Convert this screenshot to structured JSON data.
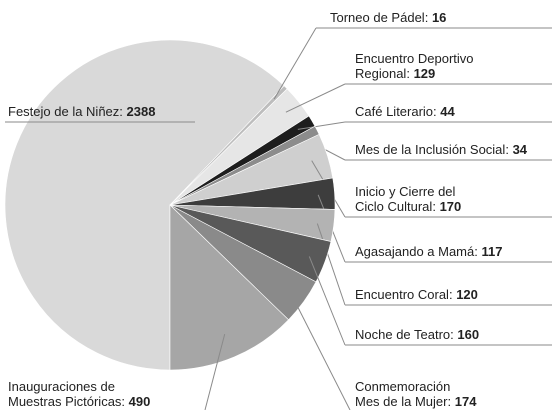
{
  "chart_data": {
    "type": "pie",
    "categories": [
      "Festejo de la Niñez",
      "Torneo de Pádel",
      "Encuentro Deportivo\nRegional",
      "Café Literario",
      "Mes de la Inclusión Social",
      "Inicio y Cierre del\nCiclo Cultural",
      "Agasajando a Mamá",
      "Encuentro Coral",
      "Noche de Teatro",
      "Conmemoración\nMes de la Mujer",
      "Inauguraciones de\nMuestras Pictóricas"
    ],
    "values": [
      2388,
      16,
      129,
      44,
      34,
      170,
      117,
      120,
      160,
      174,
      490
    ],
    "colors": [
      "#d9d9d9",
      "#bdbdbd",
      "#e6e6e6",
      "#1e1e1e",
      "#8c8c8c",
      "#cfcfcf",
      "#3d3d3d",
      "#b3b3b3",
      "#595959",
      "#8a8a8a",
      "#a6a6a6"
    ]
  }
}
